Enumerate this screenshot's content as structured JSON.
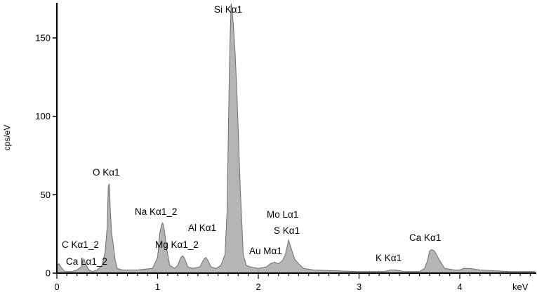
{
  "chart_data": {
    "type": "area",
    "title": "",
    "xlabel": "keV",
    "ylabel": "cps/eV",
    "xlim": [
      0,
      4.75
    ],
    "ylim": [
      0,
      172
    ],
    "x_ticks": [
      0,
      1,
      2,
      3,
      4
    ],
    "y_ticks": [
      0,
      50,
      100,
      150
    ],
    "grid": false,
    "colors": {
      "fill": "#b5b5b5",
      "stroke": "#6e6e6e",
      "axis": "#000000"
    },
    "spectrum": {
      "x": [
        0.0,
        0.02,
        0.05,
        0.08,
        0.1,
        0.15,
        0.2,
        0.24,
        0.26,
        0.27,
        0.28,
        0.3,
        0.32,
        0.35,
        0.4,
        0.45,
        0.48,
        0.5,
        0.51,
        0.52,
        0.525,
        0.53,
        0.545,
        0.56,
        0.58,
        0.6,
        0.65,
        0.8,
        0.95,
        1.0,
        1.02,
        1.04,
        1.05,
        1.06,
        1.07,
        1.09,
        1.12,
        1.17,
        1.2,
        1.23,
        1.25,
        1.27,
        1.3,
        1.35,
        1.42,
        1.46,
        1.48,
        1.5,
        1.53,
        1.58,
        1.63,
        1.67,
        1.69,
        1.71,
        1.72,
        1.73,
        1.74,
        1.75,
        1.76,
        1.77,
        1.79,
        1.82,
        1.85,
        1.88,
        1.92,
        2.0,
        2.08,
        2.12,
        2.16,
        2.2,
        2.24,
        2.27,
        2.29,
        2.3,
        2.31,
        2.33,
        2.36,
        2.4,
        2.45,
        2.55,
        3.0,
        3.25,
        3.31,
        3.36,
        3.45,
        3.6,
        3.65,
        3.68,
        3.7,
        3.72,
        3.75,
        3.8,
        3.85,
        3.95,
        4.0,
        4.04,
        4.1,
        4.2,
        4.5,
        4.75
      ],
      "y": [
        5,
        6,
        3,
        1,
        1,
        1,
        2,
        4,
        8,
        9,
        7,
        4,
        2,
        1,
        2,
        5,
        14,
        30,
        55,
        57,
        52,
        40,
        25,
        18,
        8,
        3,
        2,
        2,
        3,
        10,
        25,
        31,
        32,
        30,
        26,
        16,
        5,
        3,
        5,
        10,
        11,
        9,
        4,
        3,
        4,
        9,
        10,
        8,
        4,
        3,
        5,
        12,
        40,
        120,
        150,
        172,
        168,
        160,
        150,
        140,
        110,
        55,
        12,
        5,
        4,
        3,
        4,
        6,
        7,
        6,
        8,
        12,
        18,
        21,
        19,
        15,
        9,
        6,
        3,
        2,
        1,
        1,
        2,
        2,
        1,
        1,
        3,
        8,
        14,
        15,
        14,
        8,
        3,
        2,
        2,
        3,
        3,
        2,
        1,
        1
      ]
    },
    "peak_labels": [
      {
        "text": "Si Kα1",
        "energy": 1.74
      },
      {
        "text": "O Kα1",
        "energy": 0.525
      },
      {
        "text": "Na Kα1_2",
        "energy": 1.04
      },
      {
        "text": "Al Kα1",
        "energy": 1.49
      },
      {
        "text": "Mg Kα1_2",
        "energy": 1.25
      },
      {
        "text": "Mo Lα1",
        "energy": 2.29
      },
      {
        "text": "S Kα1",
        "energy": 2.31
      },
      {
        "text": "Au Mα1",
        "energy": 2.12
      },
      {
        "text": "C Kα1_2",
        "energy": 0.28
      },
      {
        "text": "Ca Lα1_2",
        "energy": 0.34
      },
      {
        "text": "K Kα1",
        "energy": 3.31
      },
      {
        "text": "Ca Kα1",
        "energy": 3.69
      }
    ]
  }
}
